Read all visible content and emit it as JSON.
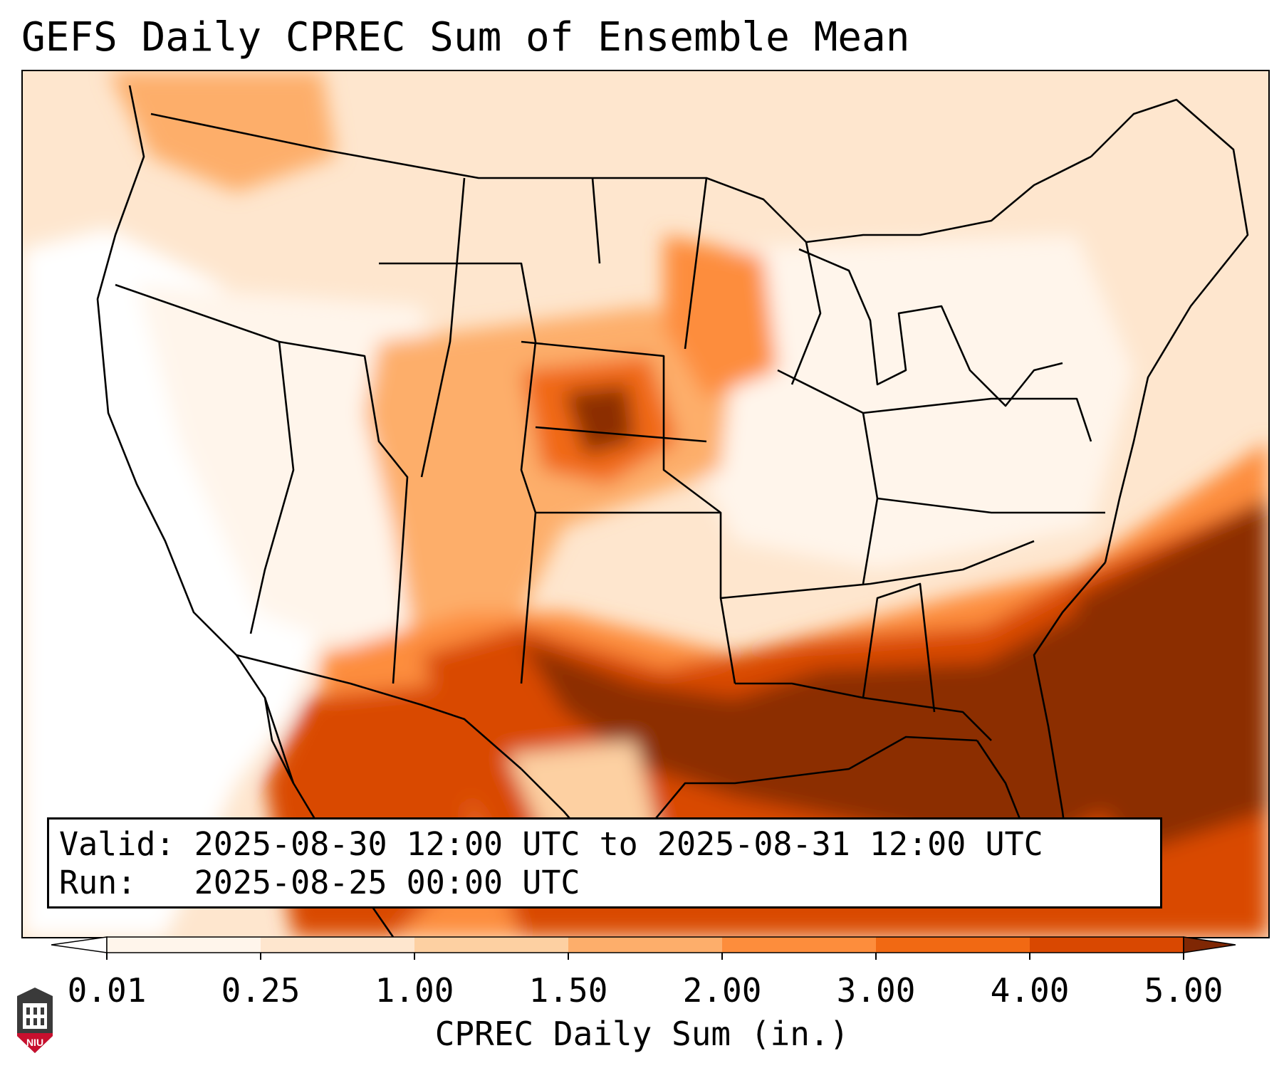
{
  "title": "GEFS Daily CPREC Sum of Ensemble Mean",
  "info": {
    "valid_label": "Valid:",
    "valid_value": "2025-08-30 12:00 UTC to 2025-08-31 12:00 UTC",
    "run_label": "Run:",
    "run_value": "2025-08-25 00:00 UTC"
  },
  "colorbar": {
    "label": "CPREC Daily Sum (in.)",
    "ticks": [
      "0.01",
      "0.25",
      "1.00",
      "1.50",
      "2.00",
      "3.00",
      "4.00",
      "5.00"
    ],
    "colors": [
      "#fff5eb",
      "#fee6ce",
      "#fdd0a2",
      "#fdae6b",
      "#fd8d3c",
      "#f16913",
      "#d94801",
      "#8c2d04"
    ],
    "under_color": "#ffffff",
    "over_color": "#7f2704"
  },
  "logo": {
    "text": "NIU",
    "name": "NIU"
  }
}
